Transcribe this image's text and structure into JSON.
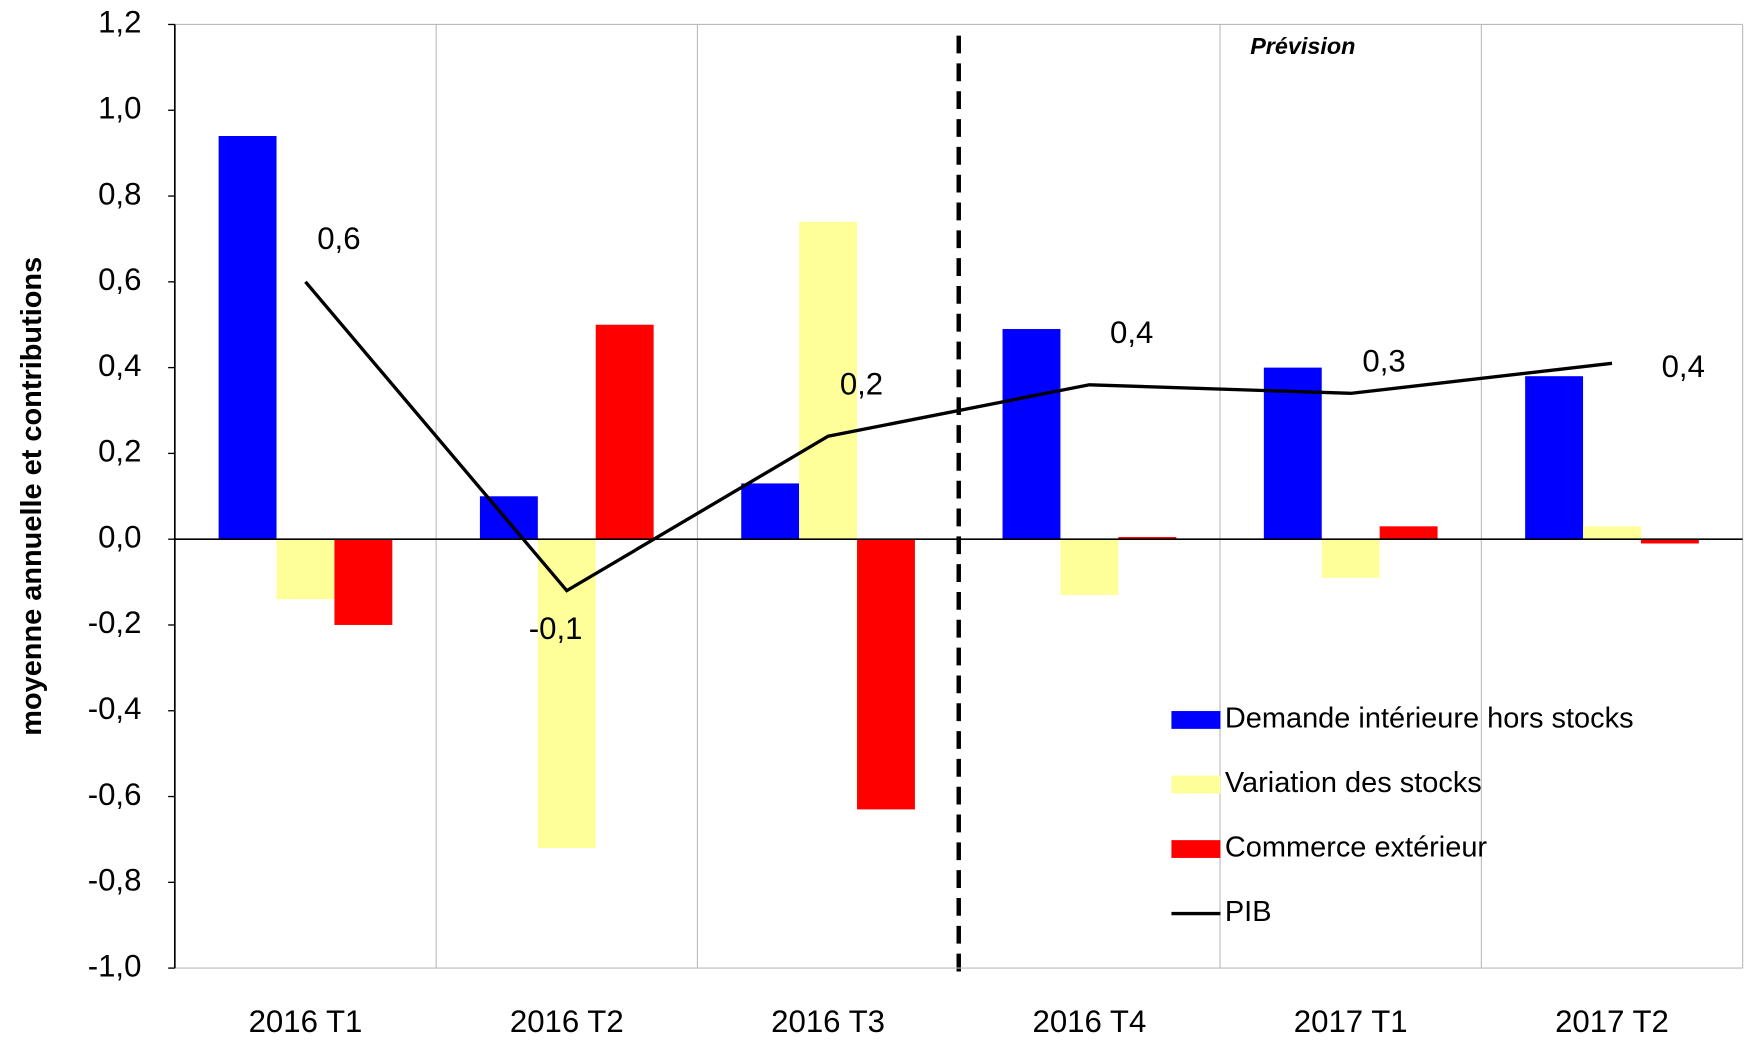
{
  "chart_data": {
    "type": "bar",
    "y_label": "moyenne annuelle et contributions",
    "annotation": "Prévision",
    "categories": [
      "2016 T1",
      "2016 T2",
      "2016 T3",
      "2016 T4",
      "2017 T1",
      "2017 T2"
    ],
    "series": [
      {
        "name": "Demande intérieure hors stocks",
        "color": "#0000ff",
        "values": [
          0.94,
          0.1,
          0.13,
          0.49,
          0.4,
          0.38
        ]
      },
      {
        "name": "Variation des stocks",
        "color": "#ffff99",
        "values": [
          -0.14,
          -0.72,
          0.74,
          -0.13,
          -0.09,
          0.03
        ]
      },
      {
        "name": "Commerce extérieur",
        "color": "#ff0000",
        "values": [
          -0.2,
          0.5,
          -0.63,
          0.005,
          0.03,
          -0.01
        ]
      },
      {
        "name": "PIB",
        "type": "line",
        "color": "#000000",
        "values": [
          0.6,
          -0.12,
          0.24,
          0.36,
          0.34,
          0.41
        ],
        "value_labels": [
          "0,6",
          "-0,1",
          "0,2",
          "0,4",
          "0,3",
          "0,4"
        ]
      }
    ],
    "ylim": [
      -1.0,
      1.2
    ],
    "yticks": [
      {
        "value": -1.0,
        "label": "-1,0"
      },
      {
        "value": -0.8,
        "label": "-0,8"
      },
      {
        "value": -0.6,
        "label": "-0,6"
      },
      {
        "value": -0.4,
        "label": "-0,4"
      },
      {
        "value": -0.2,
        "label": "-0,2"
      },
      {
        "value": 0,
        "label": "0,0"
      },
      {
        "value": 0.2,
        "label": "0,2"
      },
      {
        "value": 0.4,
        "label": "0,4"
      },
      {
        "value": 0.6,
        "label": "0,6"
      },
      {
        "value": 0.8,
        "label": "0,8"
      },
      {
        "value": 1.0,
        "label": "1,0"
      },
      {
        "value": 1.2,
        "label": "1,2"
      }
    ],
    "legend": "lower right"
  }
}
